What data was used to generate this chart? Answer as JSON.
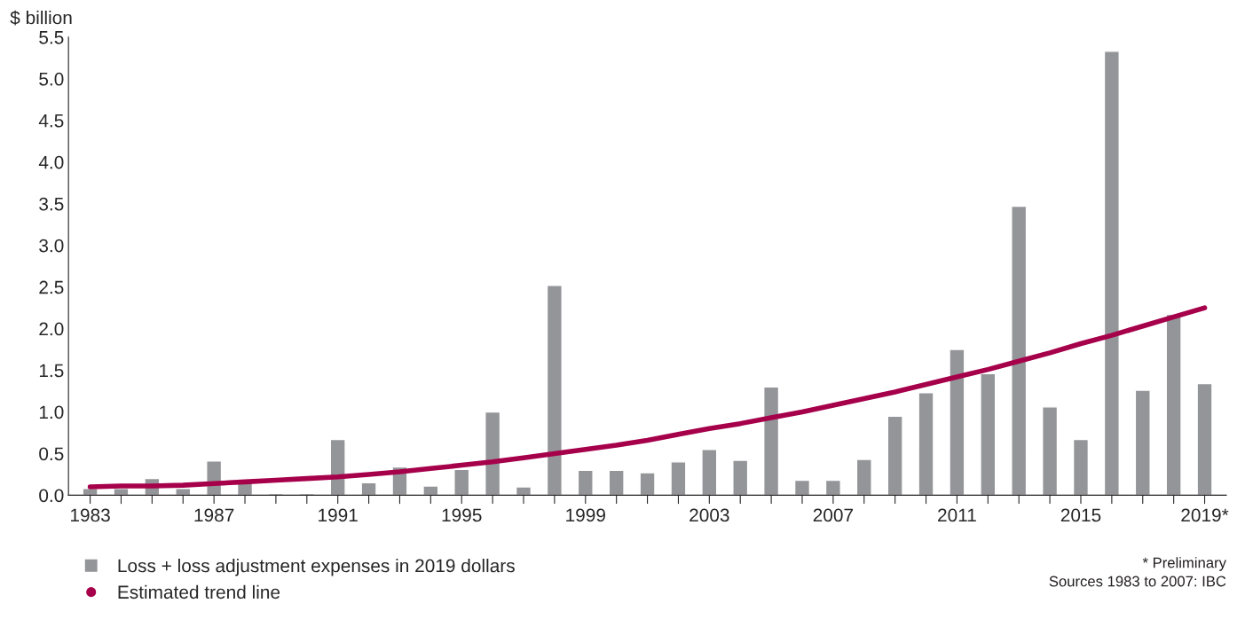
{
  "chart_data": {
    "type": "bar",
    "ylabel": "$ billion",
    "categories": [
      "1983",
      null,
      null,
      null,
      "1987",
      null,
      null,
      null,
      "1991",
      null,
      null,
      null,
      "1995",
      null,
      null,
      null,
      "1999",
      null,
      null,
      null,
      "2003",
      null,
      null,
      null,
      "2007",
      null,
      null,
      null,
      "2011",
      null,
      null,
      null,
      "2015",
      null,
      null,
      null,
      "2019*"
    ],
    "series": [
      {
        "name": "Loss + loss adjustment expenses in 2019 dollars",
        "color": "#939598",
        "values": [
          0.08,
          0.08,
          0.2,
          0.08,
          0.41,
          0.17,
          0.02,
          0.02,
          0.67,
          0.15,
          0.34,
          0.11,
          0.31,
          1.0,
          0.1,
          2.52,
          0.3,
          0.3,
          0.27,
          0.4,
          0.55,
          0.42,
          1.3,
          0.18,
          0.18,
          0.43,
          0.95,
          1.23,
          1.75,
          1.46,
          3.47,
          1.06,
          0.67,
          5.33,
          1.26,
          2.17,
          1.34
        ]
      },
      {
        "name": "Estimated trend line",
        "type": "line",
        "color": "#a6004b",
        "values": [
          0.1,
          0.11,
          0.11,
          0.12,
          0.14,
          0.16,
          0.18,
          0.2,
          0.22,
          0.25,
          0.28,
          0.32,
          0.36,
          0.4,
          0.45,
          0.5,
          0.55,
          0.6,
          0.66,
          0.73,
          0.8,
          0.86,
          0.93,
          1.0,
          1.08,
          1.16,
          1.24,
          1.33,
          1.42,
          1.51,
          1.61,
          1.71,
          1.82,
          1.92,
          2.03,
          2.14,
          2.25
        ]
      }
    ],
    "ylim": [
      0,
      5.5
    ],
    "yticks": [
      {
        "value": 0,
        "label": "0.0"
      },
      0.5,
      {
        "value": 1,
        "label": "1.0"
      },
      1.5,
      {
        "value": 2,
        "label": "2.0"
      },
      2.5,
      {
        "value": 3,
        "label": "3.0"
      },
      3.5,
      {
        "value": 4,
        "label": "4.0"
      },
      4.5,
      {
        "value": 5,
        "label": "5.0"
      },
      5.5
    ],
    "grid": false,
    "legend": "bottom left",
    "marker": "none",
    "line_style": "solid",
    "annotations": [
      "* Preliminary",
      "Sources 1983 to 2007: IBC"
    ]
  }
}
